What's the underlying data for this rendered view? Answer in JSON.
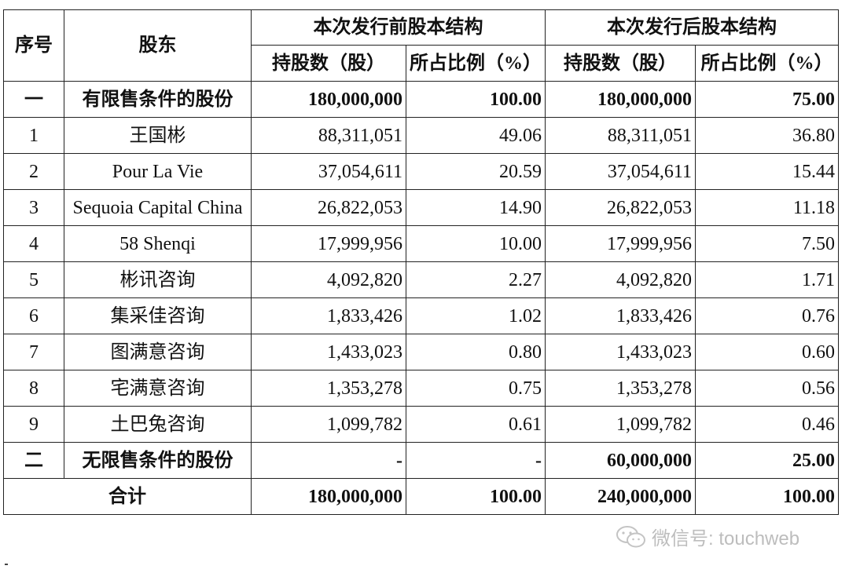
{
  "headers": {
    "seq": "序号",
    "shareholder": "股东",
    "before_group": "本次发行前股本结构",
    "after_group": "本次发行后股本结构",
    "before_shares": "持股数（股）",
    "before_ratio": "所占比例（%）",
    "after_shares": "持股数（股）",
    "after_ratio": "所占比例（%）"
  },
  "rows": [
    {
      "seq": "一",
      "name": "有限售条件的股份",
      "before_shares": "180,000,000",
      "before_ratio": "100.00",
      "after_shares": "180,000,000",
      "after_ratio": "75.00"
    },
    {
      "seq": "1",
      "name": "王国彬",
      "before_shares": "88,311,051",
      "before_ratio": "49.06",
      "after_shares": "88,311,051",
      "after_ratio": "36.80"
    },
    {
      "seq": "2",
      "name": "Pour La Vie",
      "before_shares": "37,054,611",
      "before_ratio": "20.59",
      "after_shares": "37,054,611",
      "after_ratio": "15.44"
    },
    {
      "seq": "3",
      "name": "Sequoia Capital China",
      "before_shares": "26,822,053",
      "before_ratio": "14.90",
      "after_shares": "26,822,053",
      "after_ratio": "11.18"
    },
    {
      "seq": "4",
      "name": "58 Shenqi",
      "before_shares": "17,999,956",
      "before_ratio": "10.00",
      "after_shares": "17,999,956",
      "after_ratio": "7.50"
    },
    {
      "seq": "5",
      "name": "彬讯咨询",
      "before_shares": "4,092,820",
      "before_ratio": "2.27",
      "after_shares": "4,092,820",
      "after_ratio": "1.71"
    },
    {
      "seq": "6",
      "name": "集采佳咨询",
      "before_shares": "1,833,426",
      "before_ratio": "1.02",
      "after_shares": "1,833,426",
      "after_ratio": "0.76"
    },
    {
      "seq": "7",
      "name": "图满意咨询",
      "before_shares": "1,433,023",
      "before_ratio": "0.80",
      "after_shares": "1,433,023",
      "after_ratio": "0.60"
    },
    {
      "seq": "8",
      "name": "宅满意咨询",
      "before_shares": "1,353,278",
      "before_ratio": "0.75",
      "after_shares": "1,353,278",
      "after_ratio": "0.56"
    },
    {
      "seq": "9",
      "name": "土巴兔咨询",
      "before_shares": "1,099,782",
      "before_ratio": "0.61",
      "after_shares": "1,099,782",
      "after_ratio": "0.46"
    },
    {
      "seq": "二",
      "name": "无限售条件的股份",
      "before_shares": "-",
      "before_ratio": "-",
      "after_shares": "60,000,000",
      "after_ratio": "25.00"
    }
  ],
  "total": {
    "label": "合计",
    "before_shares": "180,000,000",
    "before_ratio": "100.00",
    "after_shares": "240,000,000",
    "after_ratio": "100.00"
  },
  "watermark": {
    "icon": "wechat-icon",
    "text": "微信号: touchweb"
  }
}
